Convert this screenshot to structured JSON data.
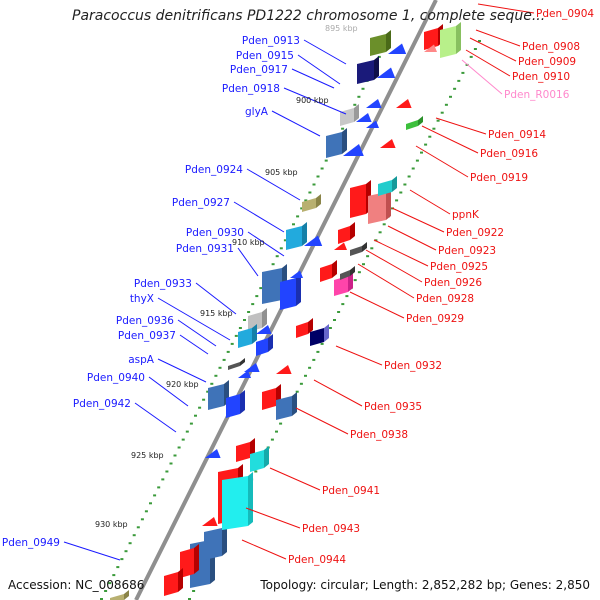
{
  "title": "Paracoccus denitrificans PD1222 chromosome 1, complete seque...",
  "footer": {
    "accession": "Accession: NC_008686",
    "topology": "Topology: circular; Length: 2,852,282 bp; Genes: 2,850"
  },
  "colors": {
    "backbone": "#8f8f8f",
    "tick_dot": "#3a9a3a",
    "left_label": "#1a1aff",
    "right_label": "#ee1111",
    "rna_label": "#ff88cc",
    "left_gene": "#2244ff",
    "left_gene_blue": "#3f73b8",
    "right_gene": "#ff1a1a"
  },
  "scale_labels": [
    {
      "text": "895 kbp"
    },
    {
      "text": "900 kbp"
    },
    {
      "text": "905 kbp"
    },
    {
      "text": "910 kbp"
    },
    {
      "text": "915 kbp"
    },
    {
      "text": "920 kbp"
    },
    {
      "text": "925 kbp"
    },
    {
      "text": "930 kbp"
    }
  ],
  "left_genes": [
    {
      "name": "Pden_0913"
    },
    {
      "name": "Pden_0915"
    },
    {
      "name": "Pden_0917"
    },
    {
      "name": "Pden_0918"
    },
    {
      "name": "glyA"
    },
    {
      "name": "Pden_0924"
    },
    {
      "name": "Pden_0927"
    },
    {
      "name": "Pden_0930"
    },
    {
      "name": "Pden_0931"
    },
    {
      "name": "Pden_0933"
    },
    {
      "name": "thyX"
    },
    {
      "name": "Pden_0936"
    },
    {
      "name": "Pden_0937"
    },
    {
      "name": "aspA"
    },
    {
      "name": "Pden_0940"
    },
    {
      "name": "Pden_0942"
    },
    {
      "name": "Pden_0949"
    }
  ],
  "right_genes": [
    {
      "name": "Pden_0904"
    },
    {
      "name": "Pden_0908"
    },
    {
      "name": "Pden_0909"
    },
    {
      "name": "Pden_0910"
    },
    {
      "name": "Pden_R0016"
    },
    {
      "name": "Pden_0914"
    },
    {
      "name": "Pden_0916"
    },
    {
      "name": "Pden_0919"
    },
    {
      "name": "ppnK"
    },
    {
      "name": "Pden_0922"
    },
    {
      "name": "Pden_0923"
    },
    {
      "name": "Pden_0925"
    },
    {
      "name": "Pden_0926"
    },
    {
      "name": "Pden_0928"
    },
    {
      "name": "Pden_0929"
    },
    {
      "name": "Pden_0932"
    },
    {
      "name": "Pden_0935"
    },
    {
      "name": "Pden_0938"
    },
    {
      "name": "Pden_0941"
    },
    {
      "name": "Pden_0943"
    },
    {
      "name": "Pden_0944"
    }
  ]
}
